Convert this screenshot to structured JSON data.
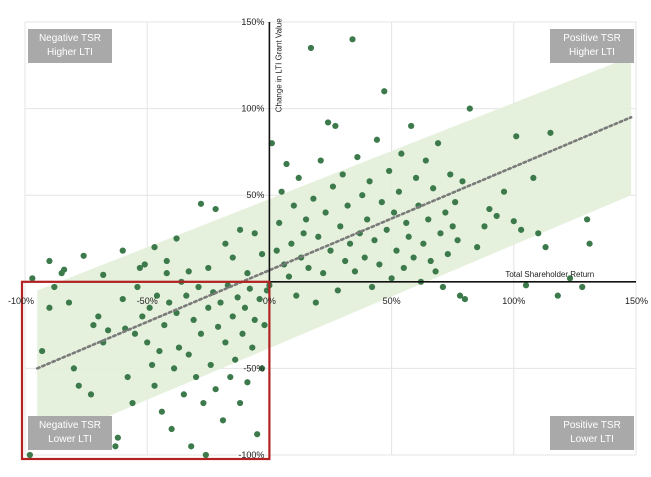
{
  "chart_data": {
    "type": "scatter",
    "xlabel": "Total Shareholder Return",
    "ylabel": "Change in LTI Grant Value",
    "xlim": [
      -100,
      150
    ],
    "ylim": [
      -100,
      150
    ],
    "x_ticks": [
      "-100%",
      "-50%",
      "0%",
      "50%",
      "100%",
      "150%"
    ],
    "y_ticks": [
      "150%",
      "100%",
      "50%",
      "-50%",
      "-100%"
    ],
    "grid": true,
    "trendline": {
      "style": "dotted",
      "color": "#7a7a7a",
      "start": [
        -95,
        -50
      ],
      "end": [
        148,
        95
      ]
    },
    "band": {
      "color": "#e2f0d9",
      "halfwidth": 45
    },
    "highlight_region": {
      "x": [
        -100,
        0
      ],
      "y": [
        -100,
        0
      ],
      "color": "#b22222"
    },
    "point_color": "#3c7a4c",
    "quadrants": {
      "top_left": [
        "Negative TSR",
        "Higher LTI"
      ],
      "top_right": [
        "Positive TSR",
        "Higher LTI"
      ],
      "bottom_left": [
        "Negative TSR",
        "Lower LTI"
      ],
      "bottom_right": [
        "Positive TSR",
        "Lower LTI"
      ]
    },
    "points": [
      [
        -98,
        -100
      ],
      [
        -93,
        -40
      ],
      [
        -90,
        -15
      ],
      [
        -88,
        -3
      ],
      [
        -85,
        5
      ],
      [
        -82,
        -12
      ],
      [
        -80,
        -50
      ],
      [
        -78,
        -60
      ],
      [
        -75,
        -92
      ],
      [
        -73,
        -65
      ],
      [
        -72,
        -25
      ],
      [
        -70,
        -20
      ],
      [
        -68,
        -35
      ],
      [
        -66,
        -28
      ],
      [
        -63,
        -95
      ],
      [
        -62,
        -90
      ],
      [
        -60,
        -10
      ],
      [
        -59,
        -27
      ],
      [
        -58,
        -55
      ],
      [
        -56,
        -70
      ],
      [
        -55,
        -30
      ],
      [
        -54,
        -3
      ],
      [
        -52,
        -20
      ],
      [
        -51,
        10
      ],
      [
        -50,
        -35
      ],
      [
        -49,
        -15
      ],
      [
        -48,
        -48
      ],
      [
        -47,
        -60
      ],
      [
        -46,
        -8
      ],
      [
        -45,
        -40
      ],
      [
        -44,
        -75
      ],
      [
        -43,
        -25
      ],
      [
        -42,
        5
      ],
      [
        -41,
        -12
      ],
      [
        -40,
        -85
      ],
      [
        -39,
        -50
      ],
      [
        -38,
        -18
      ],
      [
        -37,
        -38
      ],
      [
        -36,
        0
      ],
      [
        -35,
        -65
      ],
      [
        -34,
        -8
      ],
      [
        -33,
        -42
      ],
      [
        -32,
        -95
      ],
      [
        -31,
        -22
      ],
      [
        -30,
        -55
      ],
      [
        -29,
        -3
      ],
      [
        -28,
        -30
      ],
      [
        -27,
        -70
      ],
      [
        -26,
        -100
      ],
      [
        -25,
        -15
      ],
      [
        -24,
        -48
      ],
      [
        -23,
        -6
      ],
      [
        -22,
        -62
      ],
      [
        -21,
        -26
      ],
      [
        -20,
        -12
      ],
      [
        -19,
        -80
      ],
      [
        -18,
        -35
      ],
      [
        -17,
        -2
      ],
      [
        -16,
        -55
      ],
      [
        -15,
        -20
      ],
      [
        -14,
        -45
      ],
      [
        -13,
        -9
      ],
      [
        -12,
        -70
      ],
      [
        -11,
        -30
      ],
      [
        -10,
        -15
      ],
      [
        -9,
        -58
      ],
      [
        -8,
        -4
      ],
      [
        -7,
        -38
      ],
      [
        -6,
        -22
      ],
      [
        -5,
        -88
      ],
      [
        -4,
        -10
      ],
      [
        -3,
        -50
      ],
      [
        -2,
        -25
      ],
      [
        -1,
        -5
      ],
      [
        0,
        -2
      ],
      [
        -97,
        2
      ],
      [
        -90,
        12
      ],
      [
        -84,
        7
      ],
      [
        -76,
        15
      ],
      [
        -68,
        4
      ],
      [
        -60,
        18
      ],
      [
        -53,
        8
      ],
      [
        -47,
        20
      ],
      [
        -42,
        12
      ],
      [
        -38,
        25
      ],
      [
        -33,
        6
      ],
      [
        -28,
        45
      ],
      [
        -25,
        8
      ],
      [
        -22,
        42
      ],
      [
        -18,
        22
      ],
      [
        -15,
        14
      ],
      [
        -12,
        30
      ],
      [
        -9,
        5
      ],
      [
        -6,
        28
      ],
      [
        -3,
        16
      ],
      [
        1,
        80
      ],
      [
        3,
        18
      ],
      [
        4,
        34
      ],
      [
        5,
        52
      ],
      [
        6,
        10
      ],
      [
        7,
        68
      ],
      [
        8,
        3
      ],
      [
        9,
        22
      ],
      [
        10,
        44
      ],
      [
        11,
        -8
      ],
      [
        12,
        60
      ],
      [
        13,
        14
      ],
      [
        14,
        28
      ],
      [
        15,
        36
      ],
      [
        16,
        8
      ],
      [
        17,
        135
      ],
      [
        18,
        48
      ],
      [
        19,
        -12
      ],
      [
        20,
        26
      ],
      [
        21,
        70
      ],
      [
        22,
        5
      ],
      [
        23,
        40
      ],
      [
        24,
        92
      ],
      [
        25,
        18
      ],
      [
        26,
        55
      ],
      [
        27,
        90
      ],
      [
        28,
        -5
      ],
      [
        29,
        32
      ],
      [
        30,
        62
      ],
      [
        31,
        12
      ],
      [
        32,
        44
      ],
      [
        33,
        22
      ],
      [
        34,
        140
      ],
      [
        35,
        6
      ],
      [
        36,
        72
      ],
      [
        37,
        28
      ],
      [
        38,
        50
      ],
      [
        39,
        14
      ],
      [
        40,
        36
      ],
      [
        41,
        58
      ],
      [
        42,
        -3
      ],
      [
        43,
        24
      ],
      [
        44,
        82
      ],
      [
        45,
        10
      ],
      [
        46,
        46
      ],
      [
        47,
        110
      ],
      [
        48,
        30
      ],
      [
        49,
        64
      ],
      [
        50,
        2
      ],
      [
        51,
        40
      ],
      [
        52,
        18
      ],
      [
        53,
        52
      ],
      [
        54,
        74
      ],
      [
        55,
        8
      ],
      [
        56,
        34
      ],
      [
        57,
        26
      ],
      [
        58,
        90
      ],
      [
        59,
        14
      ],
      [
        60,
        60
      ],
      [
        61,
        44
      ],
      [
        62,
        0
      ],
      [
        63,
        22
      ],
      [
        64,
        70
      ],
      [
        65,
        36
      ],
      [
        66,
        12
      ],
      [
        67,
        54
      ],
      [
        68,
        6
      ],
      [
        69,
        80
      ],
      [
        70,
        28
      ],
      [
        71,
        -3
      ],
      [
        72,
        40
      ],
      [
        73,
        16
      ],
      [
        74,
        62
      ],
      [
        75,
        32
      ],
      [
        76,
        46
      ],
      [
        77,
        24
      ],
      [
        78,
        -8
      ],
      [
        79,
        58
      ],
      [
        80,
        -10
      ],
      [
        82,
        100
      ],
      [
        85,
        20
      ],
      [
        88,
        32
      ],
      [
        90,
        42
      ],
      [
        93,
        38
      ],
      [
        96,
        52
      ],
      [
        100,
        35
      ],
      [
        101,
        84
      ],
      [
        103,
        30
      ],
      [
        105,
        -2
      ],
      [
        108,
        60
      ],
      [
        110,
        28
      ],
      [
        113,
        20
      ],
      [
        115,
        86
      ],
      [
        118,
        -8
      ],
      [
        123,
        2
      ],
      [
        128,
        -3
      ],
      [
        130,
        36
      ],
      [
        131,
        22
      ]
    ]
  }
}
